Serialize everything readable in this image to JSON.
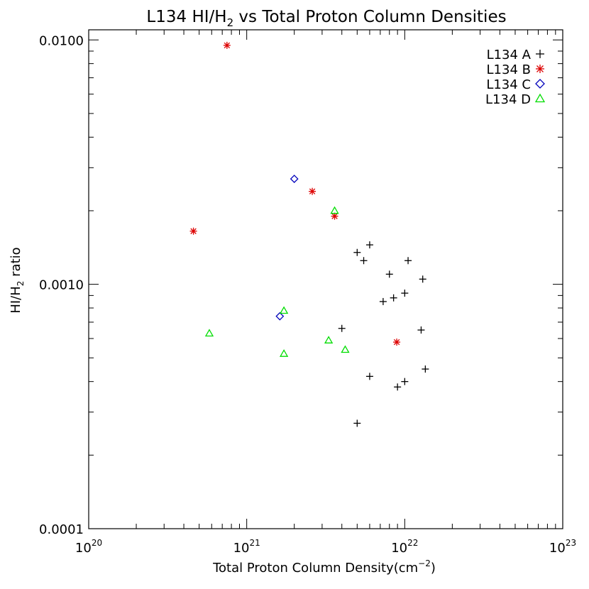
{
  "chart_data": {
    "type": "scatter",
    "title_main": "L134 HI/H",
    "title_sub": "2",
    "title_tail": " vs Total Proton Column Densities",
    "xlabel_main": "Total Proton Column Density(cm",
    "xlabel_sup": "−2",
    "xlabel_tail": ")",
    "ylabel_main": "HI/H",
    "ylabel_sub": "2",
    "ylabel_tail": " ratio",
    "x_scale": "log",
    "y_scale": "log",
    "xlim": [
      1e+20,
      1e+23
    ],
    "ylim": [
      0.0001,
      0.011
    ],
    "grid": false,
    "legend_position": "top-right",
    "x_ticks": [
      {
        "value": 1e+20,
        "base": "10",
        "exp": "20"
      },
      {
        "value": 1e+21,
        "base": "10",
        "exp": "21"
      },
      {
        "value": 1e+22,
        "base": "10",
        "exp": "22"
      },
      {
        "value": 1e+23,
        "base": "10",
        "exp": "23"
      }
    ],
    "y_ticks": [
      {
        "value": 0.01,
        "label": "0.0100"
      },
      {
        "value": 0.001,
        "label": "0.0010"
      },
      {
        "value": 0.0001,
        "label": "0.0001"
      }
    ],
    "series": [
      {
        "name": "L134 A",
        "marker": "plus",
        "color": "#000000",
        "points": [
          [
            5e+21,
            0.00135
          ],
          [
            5.5e+21,
            0.00125
          ],
          [
            6e+21,
            0.00145
          ],
          [
            1.05e+22,
            0.00125
          ],
          [
            8e+21,
            0.0011
          ],
          [
            1.3e+22,
            0.00105
          ],
          [
            8.5e+21,
            0.00088
          ],
          [
            1e+22,
            0.00092
          ],
          [
            7.3e+21,
            0.00085
          ],
          [
            4e+21,
            0.00066
          ],
          [
            1.27e+22,
            0.00065
          ],
          [
            6e+21,
            0.00042
          ],
          [
            1e+22,
            0.0004
          ],
          [
            9e+21,
            0.00038
          ],
          [
            1.35e+22,
            0.00045
          ],
          [
            5e+21,
            0.00027
          ]
        ]
      },
      {
        "name": "L134 B",
        "marker": "asterisk",
        "color": "#dd0000",
        "points": [
          [
            7.5e+20,
            0.0095
          ],
          [
            2.6e+21,
            0.0024
          ],
          [
            3.6e+21,
            0.0019
          ],
          [
            4.6e+20,
            0.00165
          ],
          [
            8.9e+21,
            0.00058
          ]
        ]
      },
      {
        "name": "L134 C",
        "marker": "diamond",
        "color": "#0000bb",
        "points": [
          [
            2e+21,
            0.0027
          ],
          [
            1.62e+21,
            0.00074
          ]
        ]
      },
      {
        "name": "L134 D",
        "marker": "triangle",
        "color": "#00dd00",
        "points": [
          [
            3.6e+21,
            0.002
          ],
          [
            1.72e+21,
            0.00078
          ],
          [
            5.8e+20,
            0.00063
          ],
          [
            3.3e+21,
            0.00059
          ],
          [
            4.2e+21,
            0.00054
          ],
          [
            1.72e+21,
            0.00052
          ]
        ]
      }
    ]
  }
}
